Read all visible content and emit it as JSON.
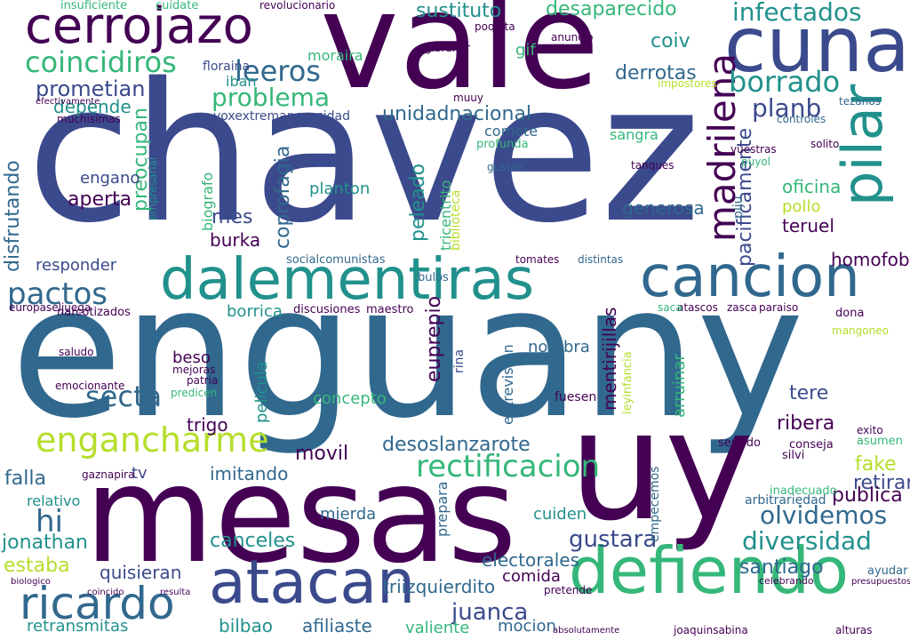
{
  "palette": {
    "dark_purple": "#440154",
    "indigo": "#3b4a8c",
    "blue": "#31688e",
    "teal": "#21918c",
    "green": "#35b779",
    "lime": "#b5de2b"
  },
  "words": [
    {
      "text": "chavez",
      "color": "#3b4a8c",
      "vertical": false
    },
    {
      "text": "enguany",
      "color": "#31688e",
      "vertical": false
    },
    {
      "text": "vale",
      "color": "#440154",
      "vertical": false
    },
    {
      "text": "mesas",
      "color": "#440154",
      "vertical": false
    },
    {
      "text": "uy",
      "color": "#440154",
      "vertical": false
    },
    {
      "text": "cuna",
      "color": "#3b4a8c",
      "vertical": false
    },
    {
      "text": "cerrojazo",
      "color": "#440154",
      "vertical": false
    },
    {
      "text": "dalementiras",
      "color": "#21918c",
      "vertical": false
    },
    {
      "text": "cancion",
      "color": "#31688e",
      "vertical": false
    },
    {
      "text": "pilar",
      "color": "#21918c",
      "vertical": true
    },
    {
      "text": "madrilena",
      "color": "#440154",
      "vertical": true
    },
    {
      "text": "defiendo",
      "color": "#35b779",
      "vertical": false
    },
    {
      "text": "atacan",
      "color": "#3b4a8c",
      "vertical": false
    },
    {
      "text": "ricardo",
      "color": "#31688e",
      "vertical": false
    },
    {
      "text": "engancharme",
      "color": "#b5de2b",
      "vertical": false
    },
    {
      "text": "coincidiros",
      "color": "#35b779",
      "vertical": false
    },
    {
      "text": "infectados",
      "color": "#21918c",
      "vertical": false
    },
    {
      "text": "desaparecido",
      "color": "#35b779",
      "vertical": false
    },
    {
      "text": "sustituto",
      "color": "#21918c",
      "vertical": false
    },
    {
      "text": "leeros",
      "color": "#31688e",
      "vertical": false
    },
    {
      "text": "prometian",
      "color": "#3b4a8c",
      "vertical": false
    },
    {
      "text": "depende",
      "color": "#21918c",
      "vertical": false
    },
    {
      "text": "unidadnacional",
      "color": "#31688e",
      "vertical": false
    },
    {
      "text": "problema",
      "color": "#35b779",
      "vertical": false
    },
    {
      "text": "borrado",
      "color": "#21918c",
      "vertical": false
    },
    {
      "text": "planb",
      "color": "#3b4a8c",
      "vertical": false
    },
    {
      "text": "derrotas",
      "color": "#31688e",
      "vertical": false
    },
    {
      "text": "coiv",
      "color": "#21918c",
      "vertical": false
    },
    {
      "text": "pactos",
      "color": "#31688e",
      "vertical": false
    },
    {
      "text": "secta",
      "color": "#31688e",
      "vertical": false
    },
    {
      "text": "hi",
      "color": "#31688e",
      "vertical": false
    },
    {
      "text": "jonathan",
      "color": "#21918c",
      "vertical": false
    },
    {
      "text": "estaba",
      "color": "#b5de2b",
      "vertical": false
    },
    {
      "text": "falla",
      "color": "#31688e",
      "vertical": false
    },
    {
      "text": "rectificacion",
      "color": "#35b779",
      "vertical": false
    },
    {
      "text": "olvidemos",
      "color": "#31688e",
      "vertical": false
    },
    {
      "text": "diversidad",
      "color": "#21918c",
      "vertical": false
    },
    {
      "text": "gustara",
      "color": "#3b4a8c",
      "vertical": false
    },
    {
      "text": "santiago",
      "color": "#31688e",
      "vertical": false
    },
    {
      "text": "juanca",
      "color": "#3b4a8c",
      "vertical": false
    },
    {
      "text": "canceles",
      "color": "#21918c",
      "vertical": false
    },
    {
      "text": "desoslanzarote",
      "color": "#31688e",
      "vertical": false
    },
    {
      "text": "movil",
      "color": "#440154",
      "vertical": false
    },
    {
      "text": "imitando",
      "color": "#31688e",
      "vertical": false
    },
    {
      "text": "retransmitas",
      "color": "#21918c",
      "vertical": false
    },
    {
      "text": "bilbao",
      "color": "#21918c",
      "vertical": false
    },
    {
      "text": "afiliaste",
      "color": "#31688e",
      "vertical": false
    },
    {
      "text": "valiente",
      "color": "#35b779",
      "vertical": false
    },
    {
      "text": "mocion",
      "color": "#31688e",
      "vertical": false
    },
    {
      "text": "quisieran",
      "color": "#3b4a8c",
      "vertical": false
    },
    {
      "text": "triizquierdito",
      "color": "#31688e",
      "vertical": false
    },
    {
      "text": "electorales",
      "color": "#31688e",
      "vertical": false
    },
    {
      "text": "comida",
      "color": "#440154",
      "vertical": false
    },
    {
      "text": "retirar",
      "color": "#3b4a8c",
      "vertical": false
    },
    {
      "text": "publica",
      "color": "#440154",
      "vertical": false
    },
    {
      "text": "fake",
      "color": "#b5de2b",
      "vertical": false
    },
    {
      "text": "ribera",
      "color": "#440154",
      "vertical": false
    },
    {
      "text": "tere",
      "color": "#3b4a8c",
      "vertical": false
    },
    {
      "text": "homofobo",
      "color": "#440154",
      "vertical": false
    },
    {
      "text": "teruel",
      "color": "#440154",
      "vertical": false
    },
    {
      "text": "oficina",
      "color": "#35b779",
      "vertical": false
    },
    {
      "text": "pollo",
      "color": "#b5de2b",
      "vertical": false
    },
    {
      "text": "generosa",
      "color": "#31688e",
      "vertical": false
    },
    {
      "text": "pacificamente",
      "color": "#3b4a8c",
      "vertical": true
    },
    {
      "text": "coprofagia",
      "color": "#31688e",
      "vertical": true
    },
    {
      "text": "disfrutando",
      "color": "#31688e",
      "vertical": true
    },
    {
      "text": "preocupan",
      "color": "#35b779",
      "vertical": true
    },
    {
      "text": "peleado",
      "color": "#21918c",
      "vertical": true
    },
    {
      "text": "euprepio",
      "color": "#440154",
      "vertical": true
    },
    {
      "text": "planton",
      "color": "#21918c",
      "vertical": false
    },
    {
      "text": "aperta",
      "color": "#440154",
      "vertical": false
    },
    {
      "text": "mes",
      "color": "#3b4a8c",
      "vertical": false
    },
    {
      "text": "engano",
      "color": "#3b4a8c",
      "vertical": false
    },
    {
      "text": "responder",
      "color": "#3b4a8c",
      "vertical": false
    },
    {
      "text": "burka",
      "color": "#440154",
      "vertical": false
    },
    {
      "text": "borrica",
      "color": "#21918c",
      "vertical": false
    },
    {
      "text": "beso",
      "color": "#440154",
      "vertical": false
    },
    {
      "text": "trigo",
      "color": "#440154",
      "vertical": false
    },
    {
      "text": "concepto",
      "color": "#35b779",
      "vertical": false
    },
    {
      "text": "nombra",
      "color": "#31688e",
      "vertical": false
    },
    {
      "text": "mierda",
      "color": "#31688e",
      "vertical": false
    },
    {
      "text": "cuiden",
      "color": "#21918c",
      "vertical": false
    },
    {
      "text": "iban",
      "color": "#21918c",
      "vertical": false
    },
    {
      "text": "moraira",
      "color": "#35b779",
      "vertical": false
    },
    {
      "text": "gif",
      "color": "#35b779",
      "vertical": false
    },
    {
      "text": "sangra",
      "color": "#35b779",
      "vertical": false
    },
    {
      "text": "comete",
      "color": "#31688e",
      "vertical": false
    },
    {
      "text": "voxextremanecesidad",
      "color": "#3b4a8c",
      "vertical": false
    },
    {
      "text": "floraina",
      "color": "#3b4a8c",
      "vertical": false
    },
    {
      "text": "revolucionario",
      "color": "#440154",
      "vertical": false
    },
    {
      "text": "insuficiente",
      "color": "#35b779",
      "vertical": false
    },
    {
      "text": "cuidate",
      "color": "#35b779",
      "vertical": false
    },
    {
      "text": "socialcomunistas",
      "color": "#31688e",
      "vertical": false
    },
    {
      "text": "discusiones",
      "color": "#440154",
      "vertical": false
    },
    {
      "text": "maestro",
      "color": "#440154",
      "vertical": false
    },
    {
      "text": "bulos",
      "color": "#31688e",
      "vertical": false
    },
    {
      "text": "tomates",
      "color": "#440154",
      "vertical": false
    },
    {
      "text": "distintas",
      "color": "#31688e",
      "vertical": false
    },
    {
      "text": "narcotizados",
      "color": "#440154",
      "vertical": false
    },
    {
      "text": "europaseljuega",
      "color": "#440154",
      "vertical": false
    },
    {
      "text": "relativo",
      "color": "#21918c",
      "vertical": false
    },
    {
      "text": "tv",
      "color": "#3b4a8c",
      "vertical": false
    },
    {
      "text": "gaznapira",
      "color": "#440154",
      "vertical": false
    },
    {
      "text": "emocionante",
      "color": "#440154",
      "vertical": false
    },
    {
      "text": "saludo",
      "color": "#440154",
      "vertical": false
    },
    {
      "text": "muchisimas",
      "color": "#440154",
      "vertical": false
    },
    {
      "text": "efectivamente",
      "color": "#440154",
      "vertical": false
    },
    {
      "text": "tanques",
      "color": "#440154",
      "vertical": false
    },
    {
      "text": "profunda",
      "color": "#35b779",
      "vertical": false
    },
    {
      "text": "gustan",
      "color": "#31688e",
      "vertical": false
    },
    {
      "text": "muuy",
      "color": "#440154",
      "vertical": false
    },
    {
      "text": "poquita",
      "color": "#440154",
      "vertical": false
    },
    {
      "text": "gibraltar",
      "color": "#440154",
      "vertical": false
    },
    {
      "text": "anuncio",
      "color": "#440154",
      "vertical": false
    },
    {
      "text": "impostores",
      "color": "#b5de2b",
      "vertical": false
    },
    {
      "text": "tezanos",
      "color": "#31688e",
      "vertical": false
    },
    {
      "text": "controles",
      "color": "#31688e",
      "vertical": false
    },
    {
      "text": "solito",
      "color": "#440154",
      "vertical": false
    },
    {
      "text": "puyol",
      "color": "#35b779",
      "vertical": false
    },
    {
      "text": "vuestras",
      "color": "#440154",
      "vertical": false
    },
    {
      "text": "mangoneo",
      "color": "#b5de2b",
      "vertical": false
    },
    {
      "text": "zasca",
      "color": "#440154",
      "vertical": false
    },
    {
      "text": "paraiso",
      "color": "#440154",
      "vertical": false
    },
    {
      "text": "dona",
      "color": "#440154",
      "vertical": false
    },
    {
      "text": "atascos",
      "color": "#440154",
      "vertical": false
    },
    {
      "text": "saca",
      "color": "#35b779",
      "vertical": false
    },
    {
      "text": "arruinar",
      "color": "#35b779",
      "vertical": true
    },
    {
      "text": "mentirijillas",
      "color": "#440154",
      "vertical": true
    },
    {
      "text": "entrevistan",
      "color": "#31688e",
      "vertical": true
    },
    {
      "text": "fuesen",
      "color": "#440154",
      "vertical": false
    },
    {
      "text": "sentido",
      "color": "#440154",
      "vertical": false
    },
    {
      "text": "conseja",
      "color": "#440154",
      "vertical": false
    },
    {
      "text": "asumen",
      "color": "#35b779",
      "vertical": false
    },
    {
      "text": "exito",
      "color": "#440154",
      "vertical": false
    },
    {
      "text": "silvi",
      "color": "#440154",
      "vertical": false
    },
    {
      "text": "inadecuado",
      "color": "#35b779",
      "vertical": false
    },
    {
      "text": "arbitrariedad",
      "color": "#31688e",
      "vertical": false
    },
    {
      "text": "ayudar",
      "color": "#31688e",
      "vertical": false
    },
    {
      "text": "presupuestos",
      "color": "#440154",
      "vertical": false
    },
    {
      "text": "pretende",
      "color": "#440154",
      "vertical": false
    },
    {
      "text": "celebrando",
      "color": "#440154",
      "vertical": false
    },
    {
      "text": "alturas",
      "color": "#440154",
      "vertical": false
    },
    {
      "text": "joaquinsabina",
      "color": "#440154",
      "vertical": false
    },
    {
      "text": "absolutamente",
      "color": "#440154",
      "vertical": false
    },
    {
      "text": "biologico",
      "color": "#440154",
      "vertical": false
    },
    {
      "text": "coincido",
      "color": "#440154",
      "vertical": false
    },
    {
      "text": "resulta",
      "color": "#440154",
      "vertical": false
    },
    {
      "text": "predicen",
      "color": "#35b779",
      "vertical": false
    },
    {
      "text": "patria",
      "color": "#440154",
      "vertical": false
    },
    {
      "text": "mejoras",
      "color": "#440154",
      "vertical": false
    },
    {
      "text": "pelicula",
      "color": "#21918c",
      "vertical": true
    },
    {
      "text": "biografo",
      "color": "#35b779",
      "vertical": true
    },
    {
      "text": "empresarial",
      "color": "#21918c",
      "vertical": true
    },
    {
      "text": "tricentrito",
      "color": "#35b779",
      "vertical": true
    },
    {
      "text": "biblioteca",
      "color": "#b5de2b",
      "vertical": true
    },
    {
      "text": "piju",
      "color": "#31688e",
      "vertical": true
    },
    {
      "text": "prepara",
      "color": "#31688e",
      "vertical": true
    },
    {
      "text": "empecemos",
      "color": "#31688e",
      "vertical": true
    },
    {
      "text": "leyinfancia",
      "color": "#b5de2b",
      "vertical": true
    },
    {
      "text": "rina",
      "color": "#3b4a8c",
      "vertical": true
    }
  ]
}
